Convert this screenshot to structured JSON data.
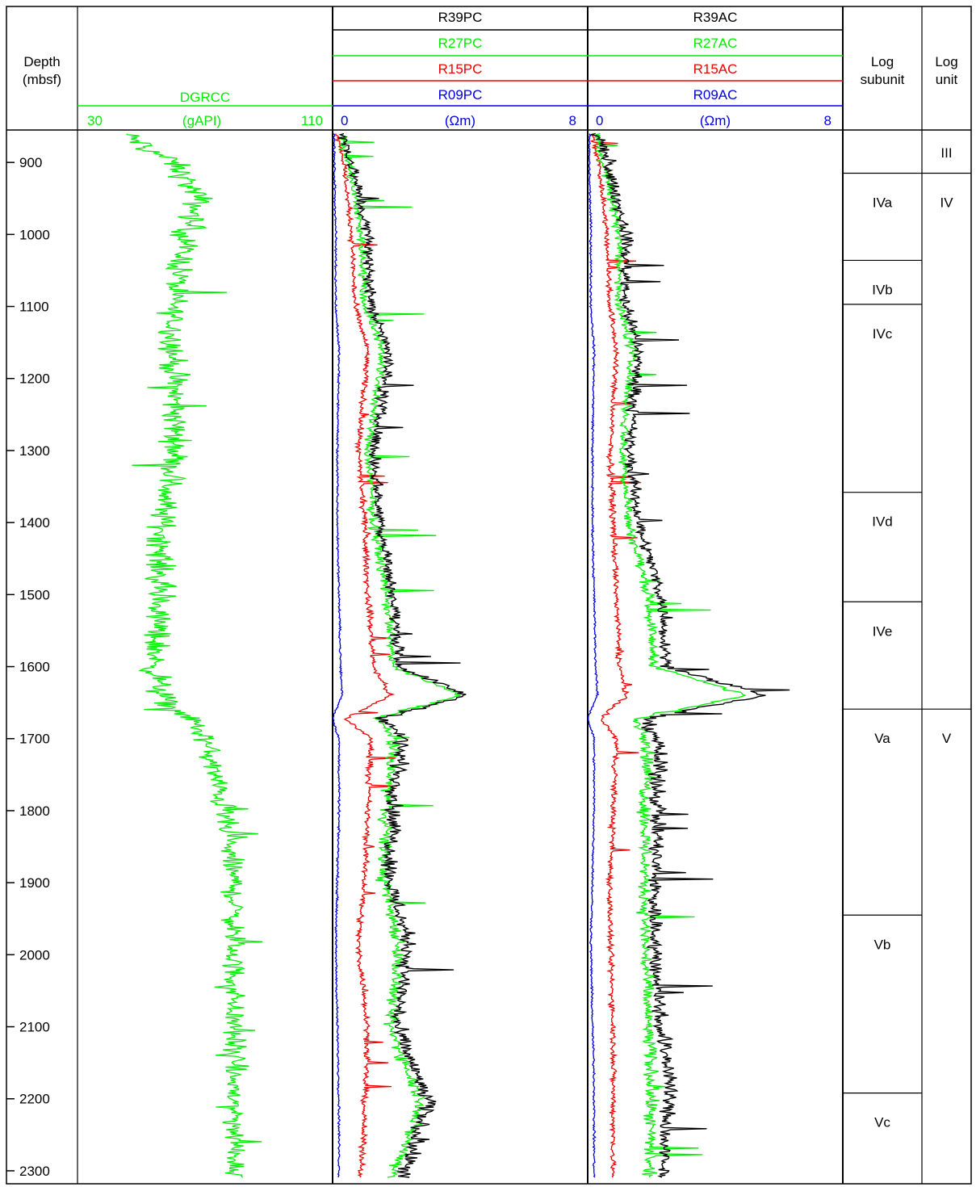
{
  "chart_data": {
    "type": "line",
    "depth_axis": {
      "label_line1": "Depth",
      "label_line2": "(mbsf)",
      "range": [
        855,
        2318
      ],
      "ticks": [
        900,
        1000,
        1100,
        1200,
        1300,
        1400,
        1500,
        1600,
        1700,
        1800,
        1900,
        2000,
        2100,
        2200,
        2300
      ],
      "orientation": "depth increases downward"
    },
    "tracks": [
      {
        "id": "gamma",
        "curves": [
          {
            "name": "DGRCC",
            "color": "#00ee00"
          }
        ],
        "scale": {
          "min": 30,
          "max": 110,
          "min_label": "30",
          "max_label": "110",
          "unit": "(gAPI)",
          "color": "#00ee00"
        },
        "profile": [
          {
            "d": 860,
            "v": 45
          },
          {
            "d": 880,
            "v": 52
          },
          {
            "d": 900,
            "v": 60
          },
          {
            "d": 950,
            "v": 68
          },
          {
            "d": 1000,
            "v": 64
          },
          {
            "d": 1050,
            "v": 62
          },
          {
            "d": 1100,
            "v": 60
          },
          {
            "d": 1200,
            "v": 60
          },
          {
            "d": 1300,
            "v": 61
          },
          {
            "d": 1380,
            "v": 57
          },
          {
            "d": 1450,
            "v": 56
          },
          {
            "d": 1550,
            "v": 55
          },
          {
            "d": 1600,
            "v": 54
          },
          {
            "d": 1650,
            "v": 57
          },
          {
            "d": 1670,
            "v": 65
          },
          {
            "d": 1700,
            "v": 70
          },
          {
            "d": 1800,
            "v": 76
          },
          {
            "d": 1900,
            "v": 79
          },
          {
            "d": 2000,
            "v": 79
          },
          {
            "d": 2100,
            "v": 79
          },
          {
            "d": 2200,
            "v": 79
          },
          {
            "d": 2310,
            "v": 80
          }
        ]
      },
      {
        "id": "phase",
        "curves": [
          {
            "name": "R39PC",
            "color": "#000000"
          },
          {
            "name": "R27PC",
            "color": "#00ee00"
          },
          {
            "name": "R15PC",
            "color": "#ee0000"
          },
          {
            "name": "R09PC",
            "color": "#0000dd"
          }
        ],
        "scale": {
          "min": 0,
          "max": 8,
          "min_label": "0",
          "max_label": "8",
          "unit": "(Ωm)",
          "color": "#0000dd"
        },
        "profile": [
          {
            "d": 860,
            "v": [
              0.3,
              0.25,
              0.15,
              0.05
            ]
          },
          {
            "d": 900,
            "v": [
              0.6,
              0.5,
              0.35,
              0.05
            ]
          },
          {
            "d": 1000,
            "v": [
              1.1,
              0.9,
              0.6,
              0.1
            ]
          },
          {
            "d": 1100,
            "v": [
              1.2,
              1.0,
              0.7,
              0.1
            ]
          },
          {
            "d": 1160,
            "v": [
              1.8,
              1.6,
              1.1,
              0.2
            ]
          },
          {
            "d": 1300,
            "v": [
              1.3,
              1.1,
              0.8,
              0.15
            ]
          },
          {
            "d": 1400,
            "v": [
              1.5,
              1.3,
              1.0,
              0.15
            ]
          },
          {
            "d": 1500,
            "v": [
              1.9,
              1.7,
              1.1,
              0.2
            ]
          },
          {
            "d": 1600,
            "v": [
              2.1,
              1.9,
              1.3,
              0.25
            ]
          },
          {
            "d": 1640,
            "v": [
              4.2,
              4.0,
              1.8,
              0.3
            ]
          },
          {
            "d": 1672,
            "v": [
              1.6,
              1.4,
              0.4,
              0.0
            ]
          },
          {
            "d": 1700,
            "v": [
              2.2,
              1.9,
              1.2,
              0.2
            ]
          },
          {
            "d": 1800,
            "v": [
              1.9,
              1.7,
              1.1,
              0.2
            ]
          },
          {
            "d": 1900,
            "v": [
              1.8,
              1.6,
              1.0,
              0.15
            ]
          },
          {
            "d": 1985,
            "v": [
              2.4,
              2.1,
              0.8,
              0.1
            ]
          },
          {
            "d": 2100,
            "v": [
              2.0,
              1.8,
              1.1,
              0.15
            ]
          },
          {
            "d": 2205,
            "v": [
              3.0,
              2.8,
              1.0,
              0.2
            ]
          },
          {
            "d": 2310,
            "v": [
              2.2,
              1.9,
              0.9,
              0.2
            ]
          }
        ]
      },
      {
        "id": "attenuation",
        "curves": [
          {
            "name": "R39AC",
            "color": "#000000"
          },
          {
            "name": "R27AC",
            "color": "#00ee00"
          },
          {
            "name": "R15AC",
            "color": "#ee0000"
          },
          {
            "name": "R09AC",
            "color": "#0000dd"
          }
        ],
        "scale": {
          "min": 0,
          "max": 8,
          "min_label": "0",
          "max_label": "8",
          "unit": "(Ωm)",
          "color": "#0000dd"
        },
        "profile": [
          {
            "d": 860,
            "v": [
              0.3,
              0.25,
              0.15,
              0.05
            ]
          },
          {
            "d": 900,
            "v": [
              0.6,
              0.5,
              0.35,
              0.05
            ]
          },
          {
            "d": 1000,
            "v": [
              1.2,
              1.0,
              0.6,
              0.1
            ]
          },
          {
            "d": 1100,
            "v": [
              1.2,
              1.0,
              0.7,
              0.1
            ]
          },
          {
            "d": 1160,
            "v": [
              1.6,
              1.4,
              0.9,
              0.2
            ]
          },
          {
            "d": 1300,
            "v": [
              1.3,
              1.1,
              0.7,
              0.15
            ]
          },
          {
            "d": 1400,
            "v": [
              1.6,
              1.3,
              0.8,
              0.15
            ]
          },
          {
            "d": 1500,
            "v": [
              2.3,
              1.9,
              0.9,
              0.2
            ]
          },
          {
            "d": 1600,
            "v": [
              2.5,
              2.1,
              1.0,
              0.25
            ]
          },
          {
            "d": 1640,
            "v": [
              5.5,
              5.0,
              1.2,
              0.3
            ]
          },
          {
            "d": 1672,
            "v": [
              1.8,
              1.5,
              0.4,
              0.0
            ]
          },
          {
            "d": 1700,
            "v": [
              2.2,
              1.9,
              0.9,
              0.2
            ]
          },
          {
            "d": 1800,
            "v": [
              2.2,
              1.8,
              0.8,
              0.2
            ]
          },
          {
            "d": 1900,
            "v": [
              2.1,
              1.8,
              0.7,
              0.15
            ]
          },
          {
            "d": 1985,
            "v": [
              2.1,
              1.8,
              0.7,
              0.1
            ]
          },
          {
            "d": 2100,
            "v": [
              2.3,
              1.9,
              0.8,
              0.15
            ]
          },
          {
            "d": 2170,
            "v": [
              2.6,
              2.0,
              0.8,
              0.2
            ]
          },
          {
            "d": 2310,
            "v": [
              2.3,
              1.9,
              0.8,
              0.2
            ]
          }
        ]
      }
    ],
    "subunits": {
      "header_line1": "Log",
      "header_line2": "subunit",
      "items": [
        {
          "label": "",
          "top": 855,
          "bottom": 915
        },
        {
          "label": "IVa",
          "top": 915,
          "bottom": 1036
        },
        {
          "label": "IVb",
          "top": 1036,
          "bottom": 1097
        },
        {
          "label": "IVc",
          "top": 1097,
          "bottom": 1358
        },
        {
          "label": "IVd",
          "top": 1358,
          "bottom": 1510
        },
        {
          "label": "IVe",
          "top": 1510,
          "bottom": 1659
        },
        {
          "label": "Va",
          "top": 1659,
          "bottom": 1945
        },
        {
          "label": "Vb",
          "top": 1945,
          "bottom": 2192
        },
        {
          "label": "Vc",
          "top": 2192,
          "bottom": 2318
        }
      ]
    },
    "units": {
      "header_line1": "Log",
      "header_line2": "unit",
      "items": [
        {
          "label": "III",
          "top": 855,
          "bottom": 915
        },
        {
          "label": "IV",
          "top": 915,
          "bottom": 1659
        },
        {
          "label": "V",
          "top": 1659,
          "bottom": 2318
        }
      ]
    }
  }
}
